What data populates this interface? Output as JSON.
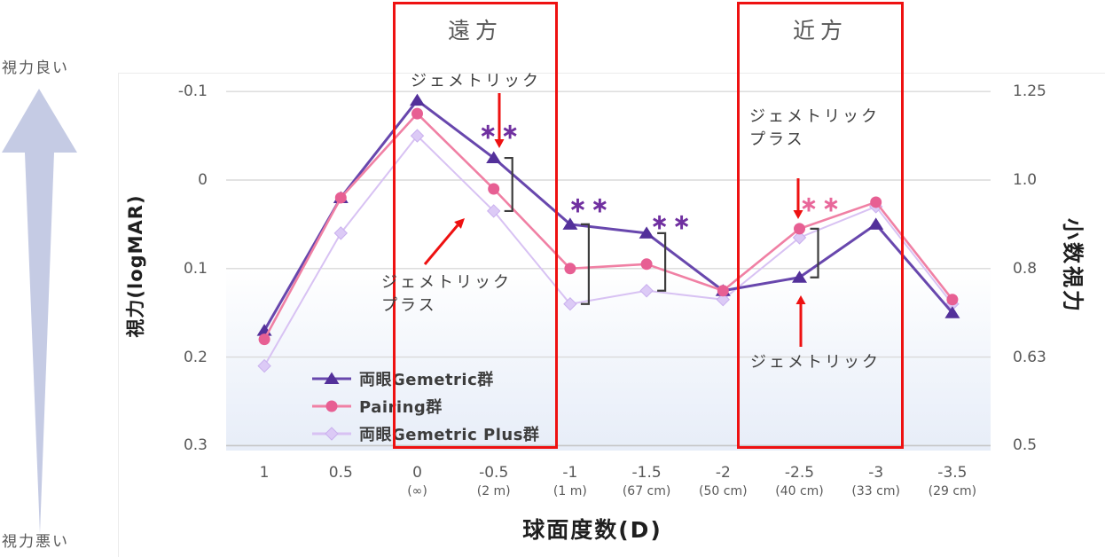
{
  "left_gauge": {
    "top_label": "視力良い",
    "bottom_label": "視力悪い",
    "arrow_color": "#c5cbe4",
    "arrow_direction": "up"
  },
  "regions": {
    "far": "遠方",
    "near": "近方"
  },
  "annotations": {
    "far_target": "ジェメトリック",
    "far_plus": "ジェメトリック\nプラス",
    "near_plus": "ジェメトリック\nプラス",
    "near_target": "ジェメトリック"
  },
  "significance": [
    {
      "at_category": "-0.5",
      "label": "**",
      "color": "#7030a0",
      "between": [
        "両眼Gemetric群",
        "両眼Gemetric Plus群"
      ],
      "star_dx": 8,
      "star_dy": -30
    },
    {
      "at_category": "-1",
      "label": "**",
      "color": "#7030a0",
      "between": [
        "両眼Gemetric群",
        "両眼Gemetric Plus群"
      ],
      "star_dx": 23,
      "star_dy": -22
    },
    {
      "at_category": "-1.5",
      "label": "**",
      "color": "#7030a0",
      "between": [
        "両眼Gemetric群",
        "両眼Gemetric Plus群"
      ],
      "star_dx": 29,
      "star_dy": -13
    },
    {
      "at_category": "-2.5",
      "label": "**",
      "color": "#e8679a",
      "between": [
        "Pairing群",
        "両眼Gemetric群"
      ],
      "star_dx": 25,
      "star_dy": -28
    }
  ],
  "accent_red": "#ee1111",
  "chart_data": {
    "type": "line",
    "title": "",
    "xlabel": "球面度数(D)",
    "ylabel_left": "視力(logMAR)",
    "ylabel_right": "小数視力",
    "categories": [
      "1",
      "0.5",
      "0",
      "-0.5",
      "-1",
      "-1.5",
      "-2",
      "-2.5",
      "-3",
      "-3.5"
    ],
    "category_sublabels": [
      "",
      "",
      "(∞)",
      "(2 m)",
      "(1 m)",
      "(67 cm)",
      "(50 cm)",
      "(40 cm)",
      "(33 cm)",
      "(29 cm)"
    ],
    "left_ticks": [
      "-0.1",
      "0",
      "0.1",
      "0.2",
      "0.3"
    ],
    "right_ticks": [
      "1.25",
      "1.0",
      "0.8",
      "0.63",
      "0.5"
    ],
    "ylim_left": [
      -0.1,
      0.3
    ],
    "y_axis_inverted": true,
    "grid": true,
    "legend_position": "inside-bottom-left",
    "series": [
      {
        "name": "両眼Gemetric群",
        "marker": "triangle",
        "line_color": "#6847ad",
        "marker_color": "#53309a",
        "values": [
          0.17,
          0.02,
          -0.09,
          -0.025,
          0.05,
          0.06,
          0.125,
          0.11,
          0.05,
          0.15
        ]
      },
      {
        "name": "Pairing群",
        "marker": "circle",
        "line_color": "#f080a4",
        "marker_color": "#e75f93",
        "values": [
          0.18,
          0.02,
          -0.075,
          0.01,
          0.1,
          0.095,
          0.125,
          0.055,
          0.025,
          0.135
        ]
      },
      {
        "name": "両眼Gemetric Plus群",
        "marker": "diamond",
        "line_color": "#d8c2f3",
        "marker_color": "#dccaf6",
        "marker_stroke": "#c9b0ee",
        "values": [
          0.21,
          0.06,
          -0.05,
          0.035,
          0.14,
          0.125,
          0.135,
          0.065,
          0.03,
          0.14
        ]
      }
    ]
  }
}
